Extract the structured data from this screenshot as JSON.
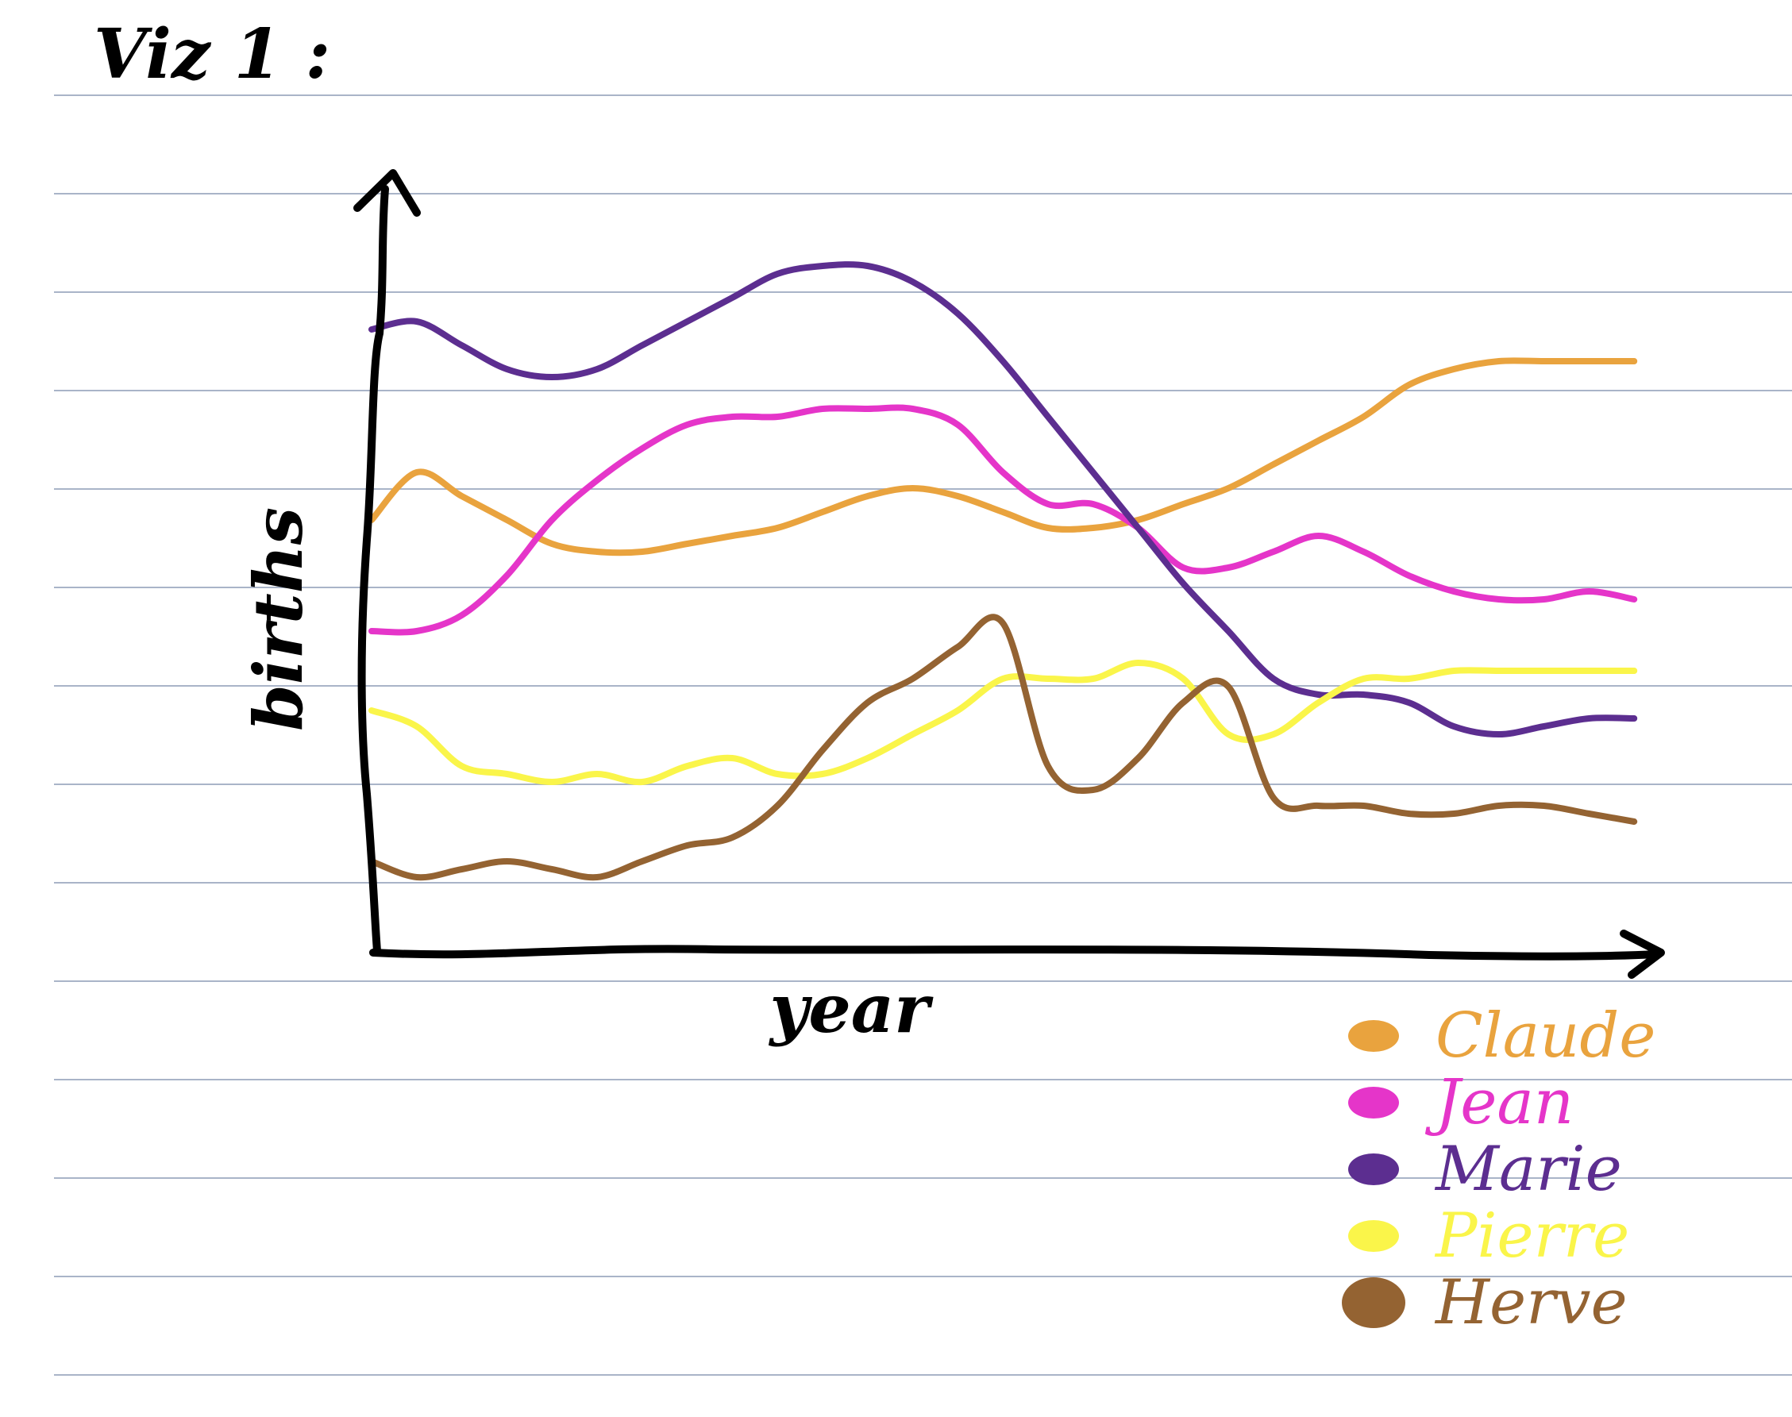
{
  "page": {
    "heading": "Viz 1 :"
  },
  "colors": {
    "paper": "#ffffff",
    "rule": "#a9b4c8",
    "ink": "#000000"
  },
  "chart_data": {
    "type": "line",
    "title": "",
    "xlabel": "year",
    "ylabel": "births",
    "x": [
      0,
      1,
      2,
      3,
      4,
      5,
      6,
      7,
      8,
      9,
      10,
      11,
      12,
      13,
      14,
      15,
      16,
      17,
      18,
      19,
      20,
      21,
      22,
      23,
      24,
      25,
      26,
      27,
      28
    ],
    "xlim": [
      0,
      29
    ],
    "ylim": [
      0,
      100
    ],
    "grid": false,
    "legend": "bottom-right",
    "series": [
      {
        "name": "Claude",
        "color": "#e9a33e",
        "values": [
          54,
          60,
          57,
          54,
          51,
          50,
          50,
          51,
          52,
          53,
          55,
          57,
          58,
          57,
          55,
          53,
          53,
          54,
          56,
          58,
          61,
          64,
          67,
          71,
          73,
          74,
          74,
          74,
          74
        ]
      },
      {
        "name": "Jean",
        "color": "#e535c9",
        "values": [
          40,
          40,
          42,
          47,
          54,
          59,
          63,
          66,
          67,
          67,
          68,
          68,
          68,
          66,
          60,
          56,
          56,
          53,
          48,
          48,
          50,
          52,
          50,
          47,
          45,
          44,
          44,
          45,
          44
        ]
      },
      {
        "name": "Marie",
        "color": "#5c2e90",
        "values": [
          78,
          79,
          76,
          73,
          72,
          73,
          76,
          79,
          82,
          85,
          86,
          86,
          84,
          80,
          74,
          67,
          60,
          53,
          46,
          40,
          34,
          32,
          32,
          31,
          28,
          27,
          28,
          29,
          29
        ]
      },
      {
        "name": "Pierre",
        "color": "#faf54a",
        "values": [
          30,
          28,
          23,
          22,
          21,
          22,
          21,
          23,
          24,
          22,
          22,
          24,
          27,
          30,
          34,
          34,
          34,
          36,
          34,
          27,
          27,
          31,
          34,
          34,
          35,
          35,
          35,
          35,
          35
        ]
      },
      {
        "name": "Herve",
        "color": "#946332",
        "values": [
          11,
          9,
          10,
          11,
          10,
          9,
          11,
          13,
          14,
          18,
          25,
          31,
          34,
          38,
          41,
          23,
          20,
          24,
          31,
          33,
          19,
          18,
          18,
          17,
          17,
          18,
          18,
          17,
          16
        ]
      }
    ]
  }
}
